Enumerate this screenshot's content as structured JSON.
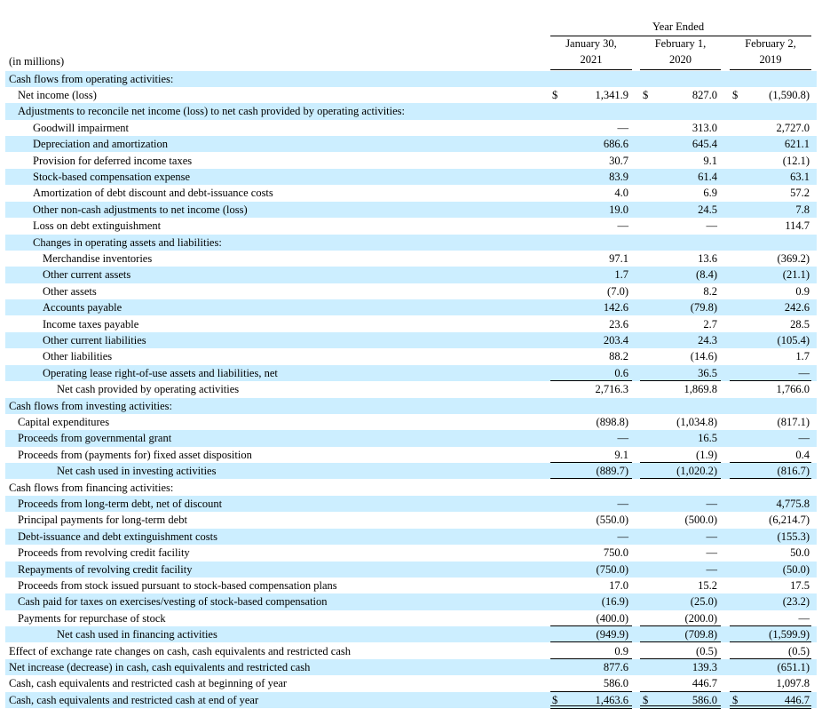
{
  "header": {
    "period": "Year Ended",
    "units": "(in millions)",
    "columns": [
      {
        "line1": "January 30,",
        "line2": "2021"
      },
      {
        "line1": "February 1,",
        "line2": "2020"
      },
      {
        "line1": "February 2,",
        "line2": "2019"
      }
    ]
  },
  "table": {
    "rows": [
      {
        "label": "Cash flows from operating activities:"
      },
      {
        "label": "Net income (loss)",
        "currency": "$",
        "values": [
          "1,341.9",
          "827.0",
          "(1,590.8)"
        ]
      },
      {
        "label": "Adjustments to reconcile net income (loss) to net cash provided by operating activities:"
      },
      {
        "label": "Goodwill impairment",
        "values": [
          "—",
          "313.0",
          "2,727.0"
        ]
      },
      {
        "label": "Depreciation and amortization",
        "values": [
          "686.6",
          "645.4",
          "621.1"
        ]
      },
      {
        "label": "Provision for deferred income taxes",
        "values": [
          "30.7",
          "9.1",
          "(12.1)"
        ]
      },
      {
        "label": "Stock-based compensation expense",
        "values": [
          "83.9",
          "61.4",
          "63.1"
        ]
      },
      {
        "label": "Amortization of debt discount and debt-issuance costs",
        "values": [
          "4.0",
          "6.9",
          "57.2"
        ]
      },
      {
        "label": "Other non-cash adjustments to net income (loss)",
        "values": [
          "19.0",
          "24.5",
          "7.8"
        ]
      },
      {
        "label": "Loss on debt extinguishment",
        "values": [
          "—",
          "—",
          "114.7"
        ]
      },
      {
        "label": "Changes in operating assets and liabilities:"
      },
      {
        "label": "Merchandise inventories",
        "values": [
          "97.1",
          "13.6",
          "(369.2)"
        ]
      },
      {
        "label": "Other current assets",
        "values": [
          "1.7",
          "(8.4)",
          "(21.1)"
        ]
      },
      {
        "label": "Other assets",
        "values": [
          "(7.0)",
          "8.2",
          "0.9"
        ]
      },
      {
        "label": "Accounts payable",
        "values": [
          "142.6",
          "(79.8)",
          "242.6"
        ]
      },
      {
        "label": "Income taxes payable",
        "values": [
          "23.6",
          "2.7",
          "28.5"
        ]
      },
      {
        "label": "Other current liabilities",
        "values": [
          "203.4",
          "24.3",
          "(105.4)"
        ]
      },
      {
        "label": "Other liabilities",
        "values": [
          "88.2",
          "(14.6)",
          "1.7"
        ]
      },
      {
        "label": "Operating lease right-of-use assets and liabilities, net",
        "values": [
          "0.6",
          "36.5",
          "—"
        ]
      },
      {
        "label": "Net cash provided by operating activities",
        "values": [
          "2,716.3",
          "1,869.8",
          "1,766.0"
        ]
      },
      {
        "label": "Cash flows from investing activities:"
      },
      {
        "label": "Capital expenditures",
        "values": [
          "(898.8)",
          "(1,034.8)",
          "(817.1)"
        ]
      },
      {
        "label": "Proceeds from governmental grant",
        "values": [
          "—",
          "16.5",
          "—"
        ]
      },
      {
        "label": "Proceeds from (payments for) fixed asset disposition",
        "values": [
          "9.1",
          "(1.9)",
          "0.4"
        ]
      },
      {
        "label": "Net cash used in investing activities",
        "values": [
          "(889.7)",
          "(1,020.2)",
          "(816.7)"
        ]
      },
      {
        "label": "Cash flows from financing activities:"
      },
      {
        "label": "Proceeds from long-term debt, net of discount",
        "values": [
          "—",
          "—",
          "4,775.8"
        ]
      },
      {
        "label": "Principal payments for long-term debt",
        "values": [
          "(550.0)",
          "(500.0)",
          "(6,214.7)"
        ]
      },
      {
        "label": "Debt-issuance and debt extinguishment costs",
        "values": [
          "—",
          "—",
          "(155.3)"
        ]
      },
      {
        "label": "Proceeds from revolving credit facility",
        "values": [
          "750.0",
          "—",
          "50.0"
        ]
      },
      {
        "label": "Repayments of revolving credit facility",
        "values": [
          "(750.0)",
          "—",
          "(50.0)"
        ]
      },
      {
        "label": "Proceeds from stock issued pursuant to stock-based compensation plans",
        "values": [
          "17.0",
          "15.2",
          "17.5"
        ]
      },
      {
        "label": "Cash paid for taxes on exercises/vesting of stock-based compensation",
        "values": [
          "(16.9)",
          "(25.0)",
          "(23.2)"
        ]
      },
      {
        "label": "Payments for repurchase of stock",
        "values": [
          "(400.0)",
          "(200.0)",
          "—"
        ]
      },
      {
        "label": "Net cash used in financing activities",
        "values": [
          "(949.9)",
          "(709.8)",
          "(1,599.9)"
        ]
      },
      {
        "label": "Effect of exchange rate changes on cash, cash equivalents and restricted cash",
        "values": [
          "0.9",
          "(0.5)",
          "(0.5)"
        ]
      },
      {
        "label": "Net increase (decrease) in cash, cash equivalents and restricted cash",
        "values": [
          "877.6",
          "139.3",
          "(651.1)"
        ]
      },
      {
        "label": "Cash, cash equivalents and restricted cash at beginning of year",
        "values": [
          "586.0",
          "446.7",
          "1,097.8"
        ]
      },
      {
        "label": "Cash, cash equivalents and restricted cash at end of year",
        "currency": "$",
        "values": [
          "1,463.6",
          "586.0",
          "446.7"
        ]
      }
    ]
  }
}
